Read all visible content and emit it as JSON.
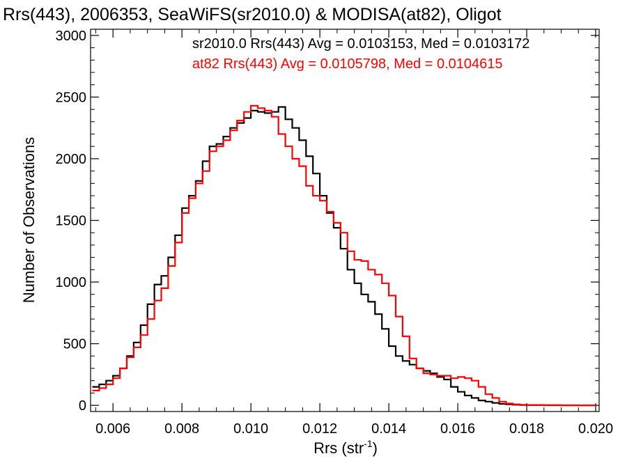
{
  "chart_data": {
    "type": "line",
    "title": "Rrs(443), 2006353, SeaWiFS(sr2010.0) & MODISA(at82), Oligot",
    "xlabel": "Rrs (str",
    "xlabel_sup": "-1",
    "xlabel_close": ")",
    "ylabel": "Number of Observations",
    "xlim": [
      0.00535,
      0.0201
    ],
    "ylim": [
      -50,
      3050
    ],
    "xticks": [
      0.006,
      0.008,
      0.01,
      0.012,
      0.014,
      0.016,
      0.018,
      0.02
    ],
    "xtick_labels": [
      "0.006",
      "0.008",
      "0.010",
      "0.012",
      "0.014",
      "0.016",
      "0.018",
      "0.020"
    ],
    "yticks": [
      0,
      500,
      1000,
      1500,
      2000,
      2500,
      3000
    ],
    "ytick_labels": [
      "0",
      "500",
      "1000",
      "1500",
      "2000",
      "2500",
      "3000"
    ],
    "grid": false,
    "legend_position": "top-right",
    "series": [
      {
        "name": "sr2010.0 Rrs(443) Avg = 0.0103153, Med = 0.0103172",
        "color": "#000000",
        "x": [
          0.0054,
          0.0056,
          0.0058,
          0.006,
          0.0062,
          0.0064,
          0.0066,
          0.0068,
          0.007,
          0.0072,
          0.0074,
          0.0076,
          0.0078,
          0.008,
          0.0082,
          0.0084,
          0.0086,
          0.0088,
          0.009,
          0.0092,
          0.0094,
          0.0096,
          0.0098,
          0.01,
          0.0102,
          0.0104,
          0.0106,
          0.0108,
          0.011,
          0.0112,
          0.0114,
          0.0116,
          0.0118,
          0.012,
          0.0122,
          0.0124,
          0.0126,
          0.0128,
          0.013,
          0.0132,
          0.0134,
          0.0136,
          0.0138,
          0.014,
          0.0142,
          0.0144,
          0.0146,
          0.0148,
          0.015,
          0.0152,
          0.0154,
          0.0156,
          0.0158,
          0.016,
          0.0162,
          0.0164,
          0.0166,
          0.0168,
          0.017,
          0.0172,
          0.0174,
          0.0176,
          0.0178,
          0.018,
          0.0185,
          0.019,
          0.0195,
          0.02
        ],
        "y": [
          150,
          170,
          200,
          240,
          300,
          400,
          510,
          650,
          820,
          980,
          1050,
          1200,
          1380,
          1600,
          1700,
          1820,
          1980,
          2100,
          2120,
          2180,
          2250,
          2290,
          2330,
          2390,
          2380,
          2370,
          2380,
          2420,
          2320,
          2250,
          2150,
          2020,
          1880,
          1700,
          1560,
          1440,
          1270,
          1100,
          990,
          900,
          840,
          740,
          620,
          480,
          400,
          360,
          330,
          300,
          280,
          260,
          230,
          210,
          150,
          110,
          80,
          60,
          40,
          30,
          20,
          12,
          8,
          5,
          3,
          2,
          1,
          0,
          0,
          0
        ]
      },
      {
        "name": "at82 Rrs(443) Avg = 0.0105798, Med = 0.0104615",
        "color": "#ff0000",
        "x": [
          0.0054,
          0.0056,
          0.0058,
          0.006,
          0.0062,
          0.0064,
          0.0066,
          0.0068,
          0.007,
          0.0072,
          0.0074,
          0.0076,
          0.0078,
          0.008,
          0.0082,
          0.0084,
          0.0086,
          0.0088,
          0.009,
          0.0092,
          0.0094,
          0.0096,
          0.0098,
          0.01,
          0.0102,
          0.0104,
          0.0106,
          0.0108,
          0.011,
          0.0112,
          0.0114,
          0.0116,
          0.0118,
          0.012,
          0.0122,
          0.0124,
          0.0126,
          0.0128,
          0.013,
          0.0132,
          0.0134,
          0.0136,
          0.0138,
          0.014,
          0.0142,
          0.0144,
          0.0146,
          0.0148,
          0.015,
          0.0152,
          0.0154,
          0.0156,
          0.0158,
          0.016,
          0.0162,
          0.0164,
          0.0166,
          0.0168,
          0.017,
          0.0172,
          0.0174,
          0.0176,
          0.0178,
          0.018,
          0.0185,
          0.019,
          0.0195,
          0.02
        ],
        "y": [
          120,
          140,
          170,
          220,
          300,
          390,
          470,
          570,
          700,
          850,
          950,
          1130,
          1320,
          1560,
          1680,
          1800,
          1900,
          2060,
          2100,
          2150,
          2230,
          2310,
          2380,
          2430,
          2410,
          2390,
          2340,
          2200,
          2100,
          2000,
          1940,
          1780,
          1700,
          1660,
          1570,
          1480,
          1400,
          1250,
          1180,
          1170,
          1100,
          1060,
          990,
          890,
          720,
          560,
          380,
          300,
          260,
          250,
          240,
          240,
          220,
          230,
          220,
          200,
          150,
          90,
          60,
          30,
          15,
          8,
          5,
          3,
          2,
          1,
          0,
          0
        ]
      }
    ]
  }
}
